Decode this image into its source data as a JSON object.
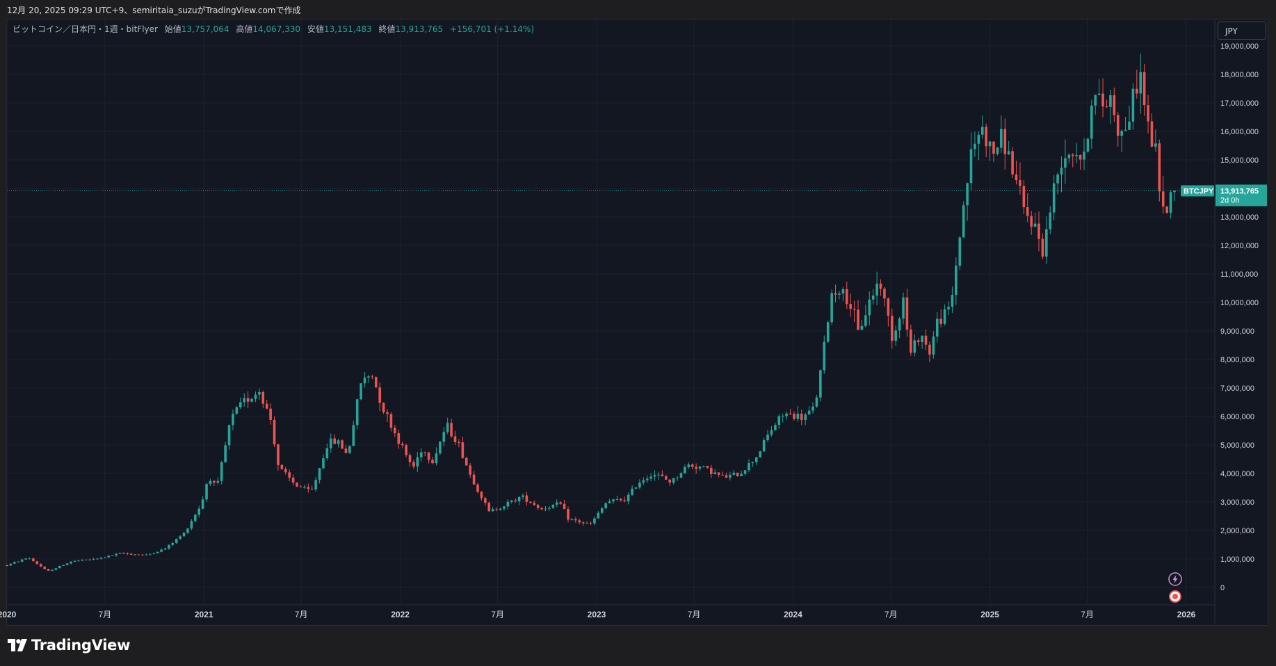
{
  "header": {
    "caption": "12月 20, 2025 09:29 UTC+9、semiritaia_suzuがTradingView.comで作成"
  },
  "legend": {
    "symbol_desc": "ビットコイン／日本円・1週・bitFlyer",
    "open_label": "始値",
    "open_value": "13,757,064",
    "high_label": "高値",
    "high_value": "14,067,330",
    "low_label": "安値",
    "low_value": "13,151,483",
    "close_label": "終値",
    "close_value": "13,913,765",
    "change_value": "+156,701 (+1.14%)"
  },
  "currency_button": "JPY",
  "price_tag": {
    "symbol": "BTCJPY",
    "price": "13,913,765",
    "countdown": "2d 0h"
  },
  "footer": {
    "logo_text": "TradingView"
  },
  "colors": {
    "up": "#26a69a",
    "down": "#ef5350",
    "background": "#131722",
    "grid": "#1e222d",
    "text": "#d1d4dc"
  },
  "icons": [
    "lightning-icon",
    "record-icon",
    "tradingview-logo-icon"
  ],
  "chart_data": {
    "type": "candlestick",
    "interval": "1W",
    "y_axis": {
      "ticks": [
        0,
        1000000,
        2000000,
        3000000,
        4000000,
        5000000,
        6000000,
        7000000,
        8000000,
        9000000,
        10000000,
        11000000,
        12000000,
        13000000,
        14000000,
        15000000,
        16000000,
        17000000,
        18000000,
        19000000
      ],
      "tick_labels": [
        "0",
        "1,000,000",
        "2,000,000",
        "3,000,000",
        "4,000,000",
        "5,000,000",
        "6,000,000",
        "7,000,000",
        "8,000,000",
        "9,000,000",
        "10,000,000",
        "11,000,000",
        "12,000,000",
        "13,000,000",
        "14,000,000",
        "15,000,000",
        "16,000,000",
        "17,000,000",
        "18,000,000",
        "19,000,000"
      ],
      "range": [
        -600000,
        19100000
      ]
    },
    "x_axis": {
      "range": [
        "2020-01-01",
        "2026-06-01"
      ],
      "ticks": [
        {
          "date": "2020-01-01",
          "label": "2020",
          "bold": true
        },
        {
          "date": "2020-07-01",
          "label": "7月",
          "bold": false
        },
        {
          "date": "2021-01-01",
          "label": "2021",
          "bold": true
        },
        {
          "date": "2021-07-01",
          "label": "7月",
          "bold": false
        },
        {
          "date": "2022-01-01",
          "label": "2022",
          "bold": true
        },
        {
          "date": "2022-07-01",
          "label": "7月",
          "bold": false
        },
        {
          "date": "2023-01-01",
          "label": "2023",
          "bold": true
        },
        {
          "date": "2023-07-01",
          "label": "7月",
          "bold": false
        },
        {
          "date": "2024-01-01",
          "label": "2024",
          "bold": true
        },
        {
          "date": "2024-07-01",
          "label": "7月",
          "bold": false
        },
        {
          "date": "2025-01-01",
          "label": "2025",
          "bold": true
        },
        {
          "date": "2025-07-01",
          "label": "7月",
          "bold": false
        },
        {
          "date": "2026-01-01",
          "label": "2026",
          "bold": true
        }
      ]
    },
    "last_price": 13913765,
    "series_close_path": [
      [
        "2020-01-01",
        780000
      ],
      [
        "2020-02-10",
        1050000
      ],
      [
        "2020-03-16",
        560000
      ],
      [
        "2020-05-01",
        920000
      ],
      [
        "2020-06-15",
        1000000
      ],
      [
        "2020-08-01",
        1200000
      ],
      [
        "2020-09-15",
        1130000
      ],
      [
        "2020-10-20",
        1350000
      ],
      [
        "2020-11-25",
        1900000
      ],
      [
        "2020-12-28",
        2950000
      ],
      [
        "2021-01-10",
        3950000
      ],
      [
        "2021-01-25",
        3450000
      ],
      [
        "2021-02-20",
        5900000
      ],
      [
        "2021-03-14",
        6500000
      ],
      [
        "2021-04-14",
        6900000
      ],
      [
        "2021-05-05",
        5900000
      ],
      [
        "2021-05-20",
        4200000
      ],
      [
        "2021-06-20",
        3600000
      ],
      [
        "2021-07-20",
        3350000
      ],
      [
        "2021-08-20",
        5100000
      ],
      [
        "2021-09-10",
        5100000
      ],
      [
        "2021-09-25",
        4600000
      ],
      [
        "2021-10-20",
        7200000
      ],
      [
        "2021-11-09",
        7500000
      ],
      [
        "2021-11-30",
        6300000
      ],
      [
        "2021-12-20",
        5500000
      ],
      [
        "2022-01-10",
        4700000
      ],
      [
        "2022-01-25",
        4200000
      ],
      [
        "2022-02-10",
        4900000
      ],
      [
        "2022-03-01",
        4400000
      ],
      [
        "2022-03-28",
        5700000
      ],
      [
        "2022-04-20",
        5000000
      ],
      [
        "2022-05-10",
        4000000
      ],
      [
        "2022-06-15",
        2650000
      ],
      [
        "2022-07-20",
        2950000
      ],
      [
        "2022-08-15",
        3200000
      ],
      [
        "2022-09-20",
        2750000
      ],
      [
        "2022-10-25",
        2950000
      ],
      [
        "2022-11-10",
        2400000
      ],
      [
        "2022-12-20",
        2200000
      ],
      [
        "2023-01-20",
        3000000
      ],
      [
        "2023-02-25",
        3100000
      ],
      [
        "2023-03-20",
        3700000
      ],
      [
        "2023-04-15",
        4000000
      ],
      [
        "2023-05-20",
        3700000
      ],
      [
        "2023-06-20",
        4300000
      ],
      [
        "2023-07-20",
        4200000
      ],
      [
        "2023-08-25",
        3850000
      ],
      [
        "2023-09-25",
        4000000
      ],
      [
        "2023-10-25",
        4600000
      ],
      [
        "2023-11-20",
        5500000
      ],
      [
        "2023-12-15",
        6100000
      ],
      [
        "2024-01-20",
        5950000
      ],
      [
        "2024-02-10",
        6300000
      ],
      [
        "2024-02-25",
        8000000
      ],
      [
        "2024-03-12",
        10300000
      ],
      [
        "2024-03-28",
        10500000
      ],
      [
        "2024-04-20",
        9800000
      ],
      [
        "2024-05-01",
        8900000
      ],
      [
        "2024-05-25",
        10200000
      ],
      [
        "2024-06-10",
        10800000
      ],
      [
        "2024-07-05",
        8700000
      ],
      [
        "2024-07-25",
        10200000
      ],
      [
        "2024-08-05",
        8100000
      ],
      [
        "2024-08-25",
        9000000
      ],
      [
        "2024-09-10",
        8200000
      ],
      [
        "2024-09-25",
        9300000
      ],
      [
        "2024-10-20",
        9800000
      ],
      [
        "2024-11-10",
        13000000
      ],
      [
        "2024-11-25",
        15000000
      ],
      [
        "2024-12-15",
        16200000
      ],
      [
        "2025-01-05",
        15200000
      ],
      [
        "2025-01-25",
        15800000
      ],
      [
        "2025-02-15",
        14500000
      ],
      [
        "2025-03-05",
        13200000
      ],
      [
        "2025-03-25",
        12700000
      ],
      [
        "2025-04-10",
        11800000
      ],
      [
        "2025-04-25",
        13500000
      ],
      [
        "2025-05-15",
        15200000
      ],
      [
        "2025-06-05",
        15400000
      ],
      [
        "2025-06-25",
        15000000
      ],
      [
        "2025-07-10",
        17300000
      ],
      [
        "2025-07-28",
        16900000
      ],
      [
        "2025-08-14",
        17200000
      ],
      [
        "2025-09-01",
        15800000
      ],
      [
        "2025-09-20",
        16700000
      ],
      [
        "2025-10-06",
        18200000
      ],
      [
        "2025-10-20",
        16300000
      ],
      [
        "2025-11-05",
        15200000
      ],
      [
        "2025-11-20",
        13000000
      ],
      [
        "2025-12-01",
        13700000
      ],
      [
        "2025-12-15",
        13913765
      ]
    ]
  }
}
